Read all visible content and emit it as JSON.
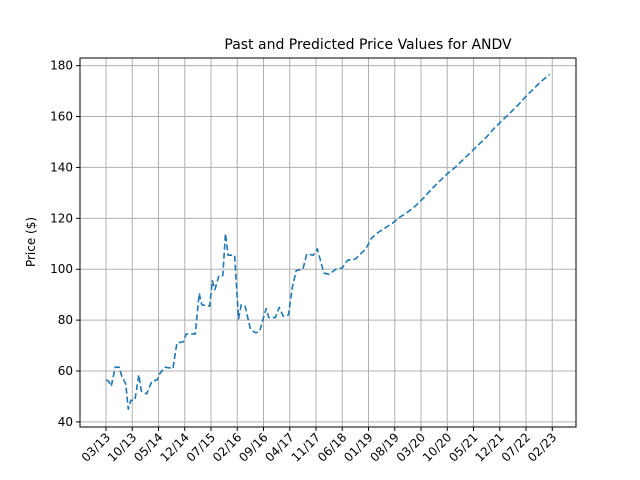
{
  "chart_data": {
    "type": "line",
    "title": "Past and Predicted Price Values for ANDV",
    "xlabel": "",
    "ylabel": "Price ($)",
    "ylim": [
      38,
      183
    ],
    "yticks": [
      40,
      60,
      80,
      100,
      120,
      140,
      160,
      180
    ],
    "grid": true,
    "line_style": "dashed",
    "colors": {
      "line": "#1f77b4",
      "grid": "#b0b0b0",
      "axes": "#000000"
    },
    "xticks": [
      "03/13",
      "10/13",
      "05/14",
      "12/14",
      "07/15",
      "02/16",
      "09/16",
      "04/17",
      "11/17",
      "06/18",
      "01/19",
      "08/19",
      "03/20",
      "10/20",
      "05/21",
      "12/21",
      "07/22",
      "02/23"
    ],
    "series": [
      {
        "points": [
          [
            0.0,
            56.5
          ],
          [
            0.1,
            56.0
          ],
          [
            0.2,
            54.0
          ],
          [
            0.35,
            61.5
          ],
          [
            0.5,
            61.5
          ],
          [
            0.6,
            58.0
          ],
          [
            0.75,
            55.0
          ],
          [
            0.85,
            45.0
          ],
          [
            0.95,
            48.5
          ],
          [
            1.1,
            48.5
          ],
          [
            1.25,
            58.5
          ],
          [
            1.35,
            52.0
          ],
          [
            1.55,
            51.0
          ],
          [
            1.75,
            56.0
          ],
          [
            1.95,
            56.5
          ],
          [
            2.05,
            59.0
          ],
          [
            2.25,
            61.5
          ],
          [
            2.55,
            61.0
          ],
          [
            2.7,
            71.0
          ],
          [
            2.95,
            71.5
          ],
          [
            3.05,
            74.5
          ],
          [
            3.4,
            74.5
          ],
          [
            3.55,
            90.5
          ],
          [
            3.65,
            86.0
          ],
          [
            3.95,
            85.5
          ],
          [
            4.05,
            95.5
          ],
          [
            4.15,
            92.0
          ],
          [
            4.3,
            97.5
          ],
          [
            4.45,
            97.5
          ],
          [
            4.55,
            114.0
          ],
          [
            4.65,
            105.5
          ],
          [
            4.9,
            105.5
          ],
          [
            5.05,
            80.5
          ],
          [
            5.15,
            86.0
          ],
          [
            5.3,
            85.5
          ],
          [
            5.5,
            76.5
          ],
          [
            5.7,
            75.0
          ],
          [
            5.85,
            75.5
          ],
          [
            6.0,
            81.0
          ],
          [
            6.1,
            84.5
          ],
          [
            6.2,
            81.0
          ],
          [
            6.45,
            81.0
          ],
          [
            6.6,
            85.0
          ],
          [
            6.75,
            81.5
          ],
          [
            6.95,
            82.0
          ],
          [
            7.1,
            93.0
          ],
          [
            7.25,
            99.5
          ],
          [
            7.5,
            100.0
          ],
          [
            7.65,
            106.0
          ],
          [
            7.9,
            105.5
          ],
          [
            8.05,
            108.0
          ],
          [
            8.3,
            98.5
          ],
          [
            8.5,
            98.0
          ],
          [
            8.75,
            100.0
          ],
          [
            9.0,
            100.5
          ],
          [
            9.2,
            103.5
          ],
          [
            9.5,
            104.0
          ],
          [
            9.7,
            106.0
          ],
          [
            9.9,
            108.0
          ],
          [
            10.1,
            112.0
          ],
          [
            10.3,
            114.0
          ],
          [
            10.6,
            116.0
          ],
          [
            10.9,
            118.0
          ],
          [
            11.2,
            120.5
          ],
          [
            11.5,
            122.5
          ],
          [
            11.8,
            125.0
          ],
          [
            12.1,
            128.0
          ],
          [
            12.4,
            131.5
          ],
          [
            12.7,
            134.5
          ],
          [
            13.0,
            137.5
          ],
          [
            13.3,
            140.0
          ],
          [
            13.6,
            143.0
          ],
          [
            13.9,
            146.0
          ],
          [
            14.2,
            149.0
          ],
          [
            14.5,
            152.0
          ],
          [
            14.8,
            155.5
          ],
          [
            15.1,
            158.5
          ],
          [
            15.4,
            161.5
          ],
          [
            15.7,
            164.5
          ],
          [
            16.0,
            168.0
          ],
          [
            16.3,
            171.0
          ],
          [
            16.6,
            174.0
          ],
          [
            16.9,
            176.5
          ]
        ]
      }
    ]
  }
}
